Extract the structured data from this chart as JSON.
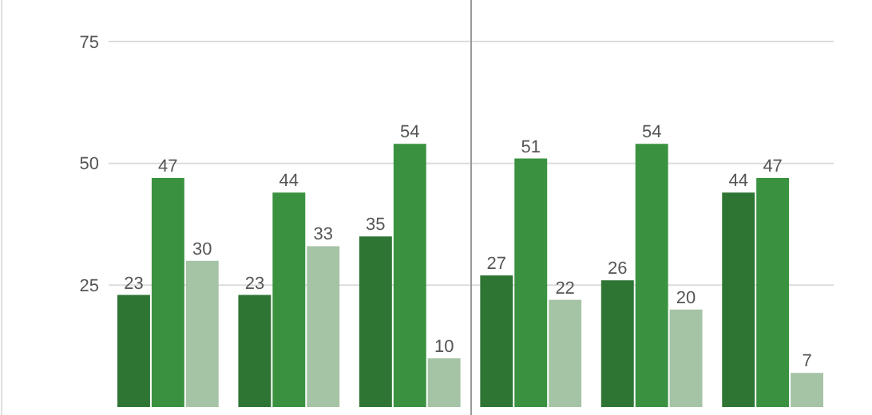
{
  "chart_data": {
    "type": "bar",
    "categories": [
      null,
      null,
      null,
      null,
      null,
      null
    ],
    "series": [
      {
        "color": "#2e7533",
        "values": [
          23,
          23,
          35,
          27,
          26,
          44
        ]
      },
      {
        "color": "#3a9240",
        "values": [
          47,
          44,
          54,
          51,
          54,
          47
        ]
      },
      {
        "color": "#a5c3a5",
        "values": [
          30,
          33,
          10,
          22,
          20,
          7
        ]
      }
    ],
    "ylim": [
      0,
      75
    ],
    "yticks": [
      25,
      50,
      75
    ],
    "grid": "y",
    "data_labels": true,
    "tick_labels": "y"
  }
}
